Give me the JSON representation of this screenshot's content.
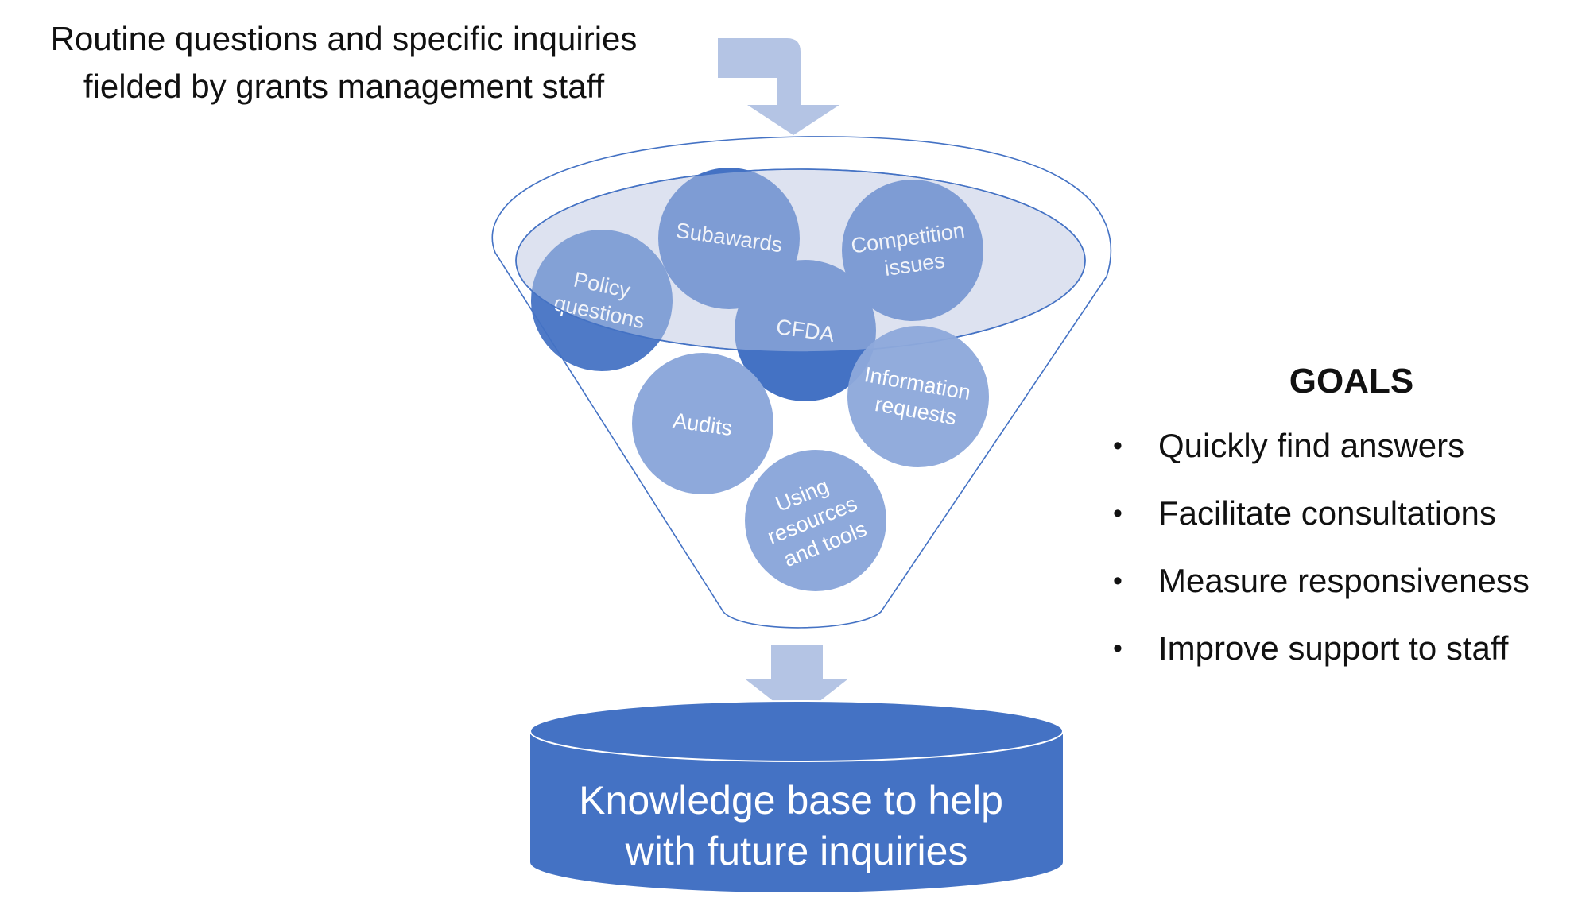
{
  "header": {
    "lines": [
      "Routine questions and specific inquiries",
      "fielded by grants management staff"
    ]
  },
  "funnel": {
    "circles": [
      {
        "id": "policy-questions",
        "lines": [
          "Policy",
          "questions"
        ],
        "color": "#4472c4"
      },
      {
        "id": "subawards",
        "lines": [
          "Subawards"
        ],
        "color": "#4472c4"
      },
      {
        "id": "competition-issues",
        "lines": [
          "Competition",
          "issues"
        ],
        "color": "#4472c4"
      },
      {
        "id": "cfda",
        "lines": [
          "CFDA"
        ],
        "color": "#4472c4"
      },
      {
        "id": "audits",
        "lines": [
          "Audits"
        ],
        "color": "#8ea9db"
      },
      {
        "id": "information-requests",
        "lines": [
          "Information",
          "requests"
        ],
        "color": "#8ea9db"
      },
      {
        "id": "using-resources-and-tools",
        "lines": [
          "Using",
          "resources",
          "and tools"
        ],
        "color": "#8ea9db"
      }
    ]
  },
  "knowledge_base": {
    "lines": [
      "Knowledge base to help",
      "with future inquiries"
    ],
    "color": "#4472c4"
  },
  "goals": {
    "title": "GOALS",
    "items": [
      "Quickly find answers",
      "Facilitate consultations",
      "Measure responsiveness",
      "Improve support to staff"
    ]
  },
  "colors": {
    "dark_blue": "#4472c4",
    "light_blue": "#8ea9db",
    "arrow": "#b4c4e4",
    "funnel_outline": "#4472c4"
  }
}
